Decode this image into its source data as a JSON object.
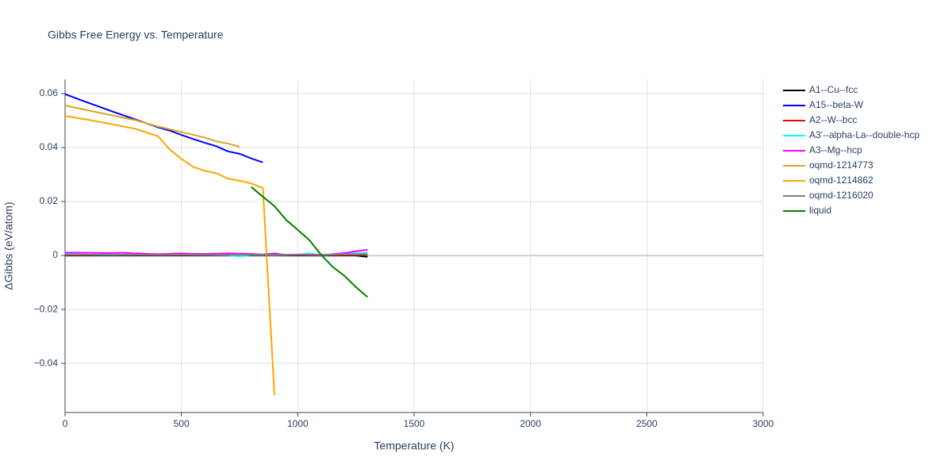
{
  "chart_data": {
    "type": "line",
    "title": "Gibbs Free Energy vs. Temperature",
    "x_label": "Temperature (K)",
    "y_label": "ΔGibbs (eV/atom)",
    "xlim": [
      0,
      3000
    ],
    "xticks": [
      0,
      500,
      1000,
      1500,
      2000,
      2500,
      3000
    ],
    "ylim": [
      -0.0582,
      0.0653
    ],
    "yticks": [
      {
        "value": -0.04,
        "label": "−0.04"
      },
      {
        "value": -0.02,
        "label": "−0.02"
      },
      0,
      0.02,
      0.04,
      0.06
    ],
    "grid": true,
    "legend": "right",
    "series": [
      {
        "name": "A1--Cu--fcc",
        "color": "#000000",
        "x": [
          0,
          100,
          200,
          300,
          400,
          500,
          600,
          700,
          800,
          900,
          1000,
          1100,
          1200,
          1250,
          1300
        ],
        "values": [
          0,
          0,
          0,
          0,
          0,
          0,
          0,
          0,
          0,
          0,
          0,
          0,
          0,
          0,
          -0.0005
        ]
      },
      {
        "name": "A15--beta-W",
        "color": "#0000ff",
        "x": [
          0,
          100,
          200,
          300,
          400,
          450,
          500,
          550,
          600,
          650,
          700,
          750,
          800,
          850
        ],
        "values": [
          0.0598,
          0.0566,
          0.0535,
          0.0505,
          0.0475,
          0.0463,
          0.0447,
          0.0432,
          0.0418,
          0.0405,
          0.0386,
          0.0377,
          0.036,
          0.0345
        ]
      },
      {
        "name": "A2--W--bcc",
        "color": "#ff0000",
        "x": [
          0,
          100,
          200,
          300,
          400,
          500,
          600,
          700,
          800,
          900,
          1000,
          1100,
          1200,
          1300
        ],
        "values": [
          0.0002,
          0.0002,
          0.0002,
          0.0002,
          0.0002,
          0.0002,
          0.0002,
          0.0002,
          0.0002,
          0.0002,
          0.0002,
          0.0002,
          0.0002,
          0.0002
        ]
      },
      {
        "name": "A3'--alpha-La--double-hcp",
        "color": "#00ffff",
        "x": [
          0,
          100,
          200,
          300,
          400,
          500,
          600,
          700,
          750,
          800,
          900,
          1000,
          1050,
          1100,
          1200,
          1300
        ],
        "values": [
          0.0005,
          0.0004,
          0.0003,
          0.0004,
          0.0003,
          0.0004,
          0.0002,
          0.0001,
          -0.0003,
          0.0002,
          0.0001,
          0.0003,
          0.0008,
          0.0001,
          0.0006,
          0.001
        ]
      },
      {
        "name": "A3--Mg--hcp",
        "color": "#ff00ff",
        "x": [
          0,
          100,
          200,
          250,
          300,
          400,
          500,
          550,
          600,
          700,
          800,
          850,
          900,
          950,
          1000,
          1100,
          1200,
          1300
        ],
        "values": [
          0.0011,
          0.001,
          0.0009,
          0.001,
          0.0008,
          0.0005,
          0.0008,
          0.0006,
          0.0006,
          0.0008,
          0.0006,
          0.0004,
          0.0008,
          0.0002,
          0.0003,
          0.0001,
          0.0009,
          0.0022
        ]
      },
      {
        "name": "oqmd-1214773",
        "color": "#daa520",
        "x": [
          0,
          100,
          200,
          300,
          400,
          500,
          600,
          650,
          700,
          750
        ],
        "values": [
          0.0556,
          0.0538,
          0.052,
          0.0502,
          0.0478,
          0.0458,
          0.0437,
          0.0423,
          0.0415,
          0.0403
        ]
      },
      {
        "name": "oqmd-1214862",
        "color": "#ffa500",
        "x": [
          0,
          100,
          200,
          300,
          400,
          450,
          500,
          550,
          600,
          650,
          700,
          750,
          800,
          850,
          900
        ],
        "values": [
          0.0517,
          0.0503,
          0.0487,
          0.047,
          0.0442,
          0.0393,
          0.0358,
          0.0329,
          0.0314,
          0.0305,
          0.0285,
          0.0277,
          0.0267,
          0.025,
          -0.0517
        ]
      },
      {
        "name": "oqmd-1216020",
        "color": "#808080",
        "x": [
          0,
          100,
          200,
          300,
          400,
          500,
          600,
          700,
          800,
          900,
          1000,
          1100,
          1200,
          1300
        ],
        "values": [
          0.0003,
          0.0003,
          0.0002,
          0.0003,
          0.0002,
          0.0003,
          0.0002,
          0.0002,
          0.0003,
          0.0002,
          0.0004,
          0.0003,
          0.0004,
          0.0005
        ]
      },
      {
        "name": "liquid",
        "color": "#008000",
        "x": [
          800,
          850,
          900,
          950,
          1000,
          1050,
          1100,
          1150,
          1200,
          1250,
          1300
        ],
        "values": [
          0.0254,
          0.0218,
          0.0183,
          0.0132,
          0.0095,
          0.0057,
          0.0003,
          -0.0042,
          -0.0075,
          -0.0117,
          -0.0154
        ]
      }
    ]
  }
}
